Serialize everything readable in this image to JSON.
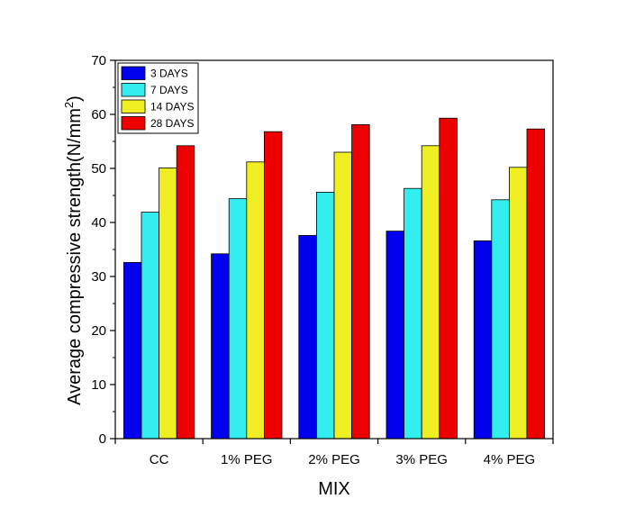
{
  "chart_data": {
    "type": "bar",
    "title": "",
    "xlabel": "MIX",
    "ylabel": "Average compressive strength(N/mm",
    "ylabel_superscript": "2",
    "ylabel_close": ")",
    "categories": [
      "CC",
      "1% PEG",
      "2% PEG",
      "3% PEG",
      "4% PEG"
    ],
    "ylim": [
      0,
      70
    ],
    "yticks": [
      "0",
      "10",
      "20",
      "30",
      "40",
      "50",
      "60",
      "70"
    ],
    "legend_position": "top-left",
    "series": [
      {
        "name": "3 DAYS",
        "color": "#0000ee",
        "values": [
          32.6,
          34.2,
          37.6,
          38.4,
          36.6
        ]
      },
      {
        "name": "7 DAYS",
        "color": "#33eeee",
        "values": [
          41.9,
          44.4,
          45.6,
          46.3,
          44.2
        ]
      },
      {
        "name": "14 DAYS",
        "color": "#eeee22",
        "values": [
          50.1,
          51.2,
          53.0,
          54.2,
          50.2
        ]
      },
      {
        "name": "28 DAYS",
        "color": "#ee0000",
        "values": [
          54.2,
          56.8,
          58.1,
          59.3,
          57.3
        ]
      }
    ]
  }
}
